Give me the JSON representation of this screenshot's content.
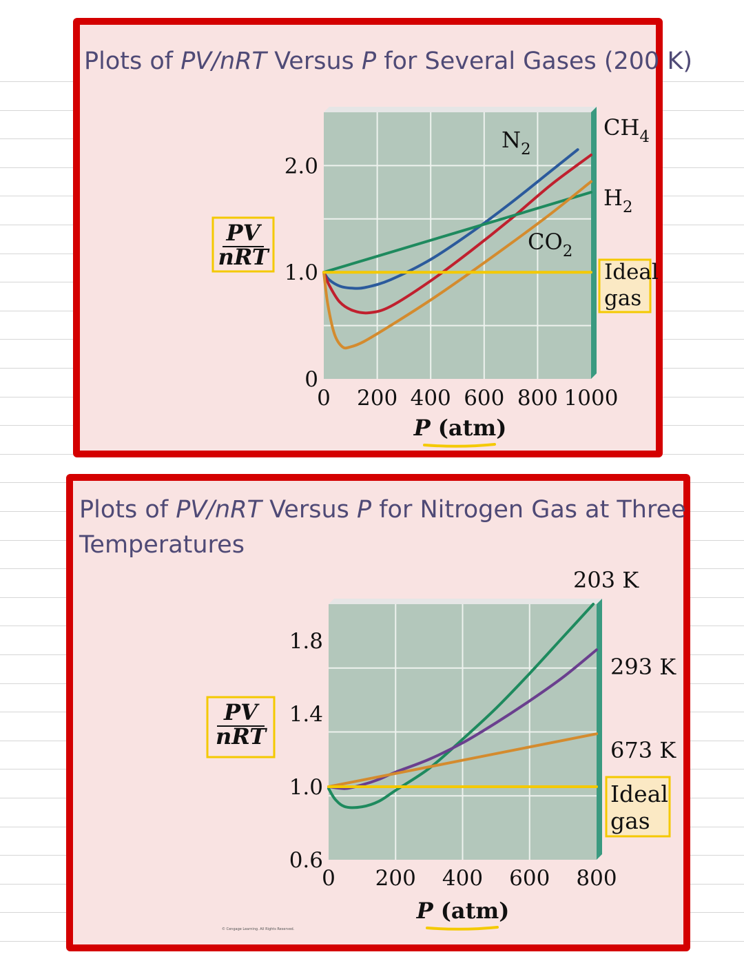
{
  "slides": [
    {
      "title_pre": "Plots of ",
      "title_em1": "PV/nRT",
      "title_mid": " Versus ",
      "title_em2": "P",
      "title_post": " for Several Gases (200 K)",
      "title_post2": ""
    },
    {
      "title_pre": "Plots of ",
      "title_em1": "PV/nRT",
      "title_mid": " Versus ",
      "title_em2": "P",
      "title_post": " for Nitrogen Gas at Three",
      "title_post2": "Temperatures"
    }
  ],
  "copyright": "© Cengage Learning. All Rights Reserved.",
  "colors": {
    "frame": "#d40000",
    "slide_bg": "#f9e3e2",
    "plot_bg": "#b3c7bb",
    "grid": "#eef2ee",
    "highlight": "#f4c900",
    "title_text": "#4f4a76"
  },
  "chart_data": [
    {
      "type": "line",
      "title": "",
      "xlabel": "P (atm)",
      "ylabel_num": "PV",
      "ylabel_den": "nRT",
      "xlim": [
        0,
        1000
      ],
      "ylim": [
        0,
        2.5
      ],
      "xticks": [
        0,
        200,
        400,
        600,
        800,
        1000
      ],
      "xtick_labels": [
        "0",
        "200",
        "400",
        "600",
        "800",
        "1000"
      ],
      "yticks": [
        0,
        1.0,
        2.0
      ],
      "ytick_labels": [
        "0",
        "1.0",
        "2.0"
      ],
      "grid": true,
      "series": [
        {
          "name": "N2",
          "color": "#2b5a9c",
          "x": [
            0,
            20,
            60,
            110,
            160,
            250,
            400,
            550,
            700,
            850,
            950
          ],
          "y": [
            1.0,
            0.93,
            0.87,
            0.85,
            0.86,
            0.93,
            1.12,
            1.37,
            1.65,
            1.95,
            2.15
          ]
        },
        {
          "name": "CH4",
          "color": "#c0202e",
          "x": [
            0,
            20,
            60,
            110,
            170,
            250,
            400,
            550,
            700,
            850,
            1000
          ],
          "y": [
            1.0,
            0.88,
            0.72,
            0.64,
            0.62,
            0.68,
            0.92,
            1.2,
            1.5,
            1.82,
            2.1
          ]
        },
        {
          "name": "H2",
          "color": "#1e8a5e",
          "x": [
            0,
            1000
          ],
          "y": [
            1.0,
            1.75
          ]
        },
        {
          "name": "CO2",
          "color": "#d48b2e",
          "x": [
            0,
            15,
            40,
            70,
            100,
            150,
            250,
            400,
            550,
            700,
            850,
            1000
          ],
          "y": [
            1.0,
            0.7,
            0.42,
            0.3,
            0.3,
            0.35,
            0.5,
            0.74,
            1.0,
            1.27,
            1.55,
            1.85
          ]
        },
        {
          "name": "Ideal gas",
          "color": "#f4c900",
          "x": [
            0,
            1000
          ],
          "y": [
            1.0,
            1.0
          ]
        }
      ],
      "series_labels": [
        {
          "base": "CH",
          "sub": "4"
        },
        {
          "base": "N",
          "sub": "2"
        },
        {
          "base": "H",
          "sub": "2"
        },
        {
          "base": "CO",
          "sub": "2"
        },
        {
          "line1": "Ideal",
          "line2": "gas"
        }
      ]
    },
    {
      "type": "line",
      "title": "",
      "xlabel": "P (atm)",
      "ylabel_num": "PV",
      "ylabel_den": "nRT",
      "xlim": [
        0,
        800
      ],
      "ylim": [
        0.6,
        2.0
      ],
      "xticks": [
        0,
        200,
        400,
        600,
        800
      ],
      "xtick_labels": [
        "0",
        "200",
        "400",
        "600",
        "800"
      ],
      "yticks": [
        0.6,
        1.0,
        1.4,
        1.8
      ],
      "ytick_labels": [
        "0.6",
        "1.0",
        "1.4",
        "1.8"
      ],
      "grid": true,
      "series": [
        {
          "name": "203 K",
          "color": "#1e8a5e",
          "x": [
            0,
            20,
            50,
            100,
            150,
            200,
            300,
            400,
            500,
            600,
            700,
            790
          ],
          "y": [
            0.99,
            0.93,
            0.89,
            0.89,
            0.92,
            0.98,
            1.1,
            1.26,
            1.43,
            1.62,
            1.82,
            2.0
          ]
        },
        {
          "name": "293 K",
          "color": "#6a3f8e",
          "x": [
            0,
            50,
            100,
            150,
            200,
            300,
            400,
            500,
            600,
            700,
            800
          ],
          "y": [
            1.0,
            0.99,
            1.01,
            1.04,
            1.08,
            1.15,
            1.24,
            1.35,
            1.47,
            1.6,
            1.75
          ]
        },
        {
          "name": "673 K",
          "color": "#d48b2e",
          "x": [
            0,
            800
          ],
          "y": [
            1.0,
            1.29
          ]
        },
        {
          "name": "Ideal gas",
          "color": "#f4c900",
          "x": [
            0,
            800
          ],
          "y": [
            1.0,
            1.0
          ]
        }
      ],
      "series_labels": [
        {
          "text": "203 K"
        },
        {
          "text": "293 K"
        },
        {
          "text": "673 K"
        },
        {
          "line1": "Ideal",
          "line2": "gas"
        }
      ]
    }
  ]
}
